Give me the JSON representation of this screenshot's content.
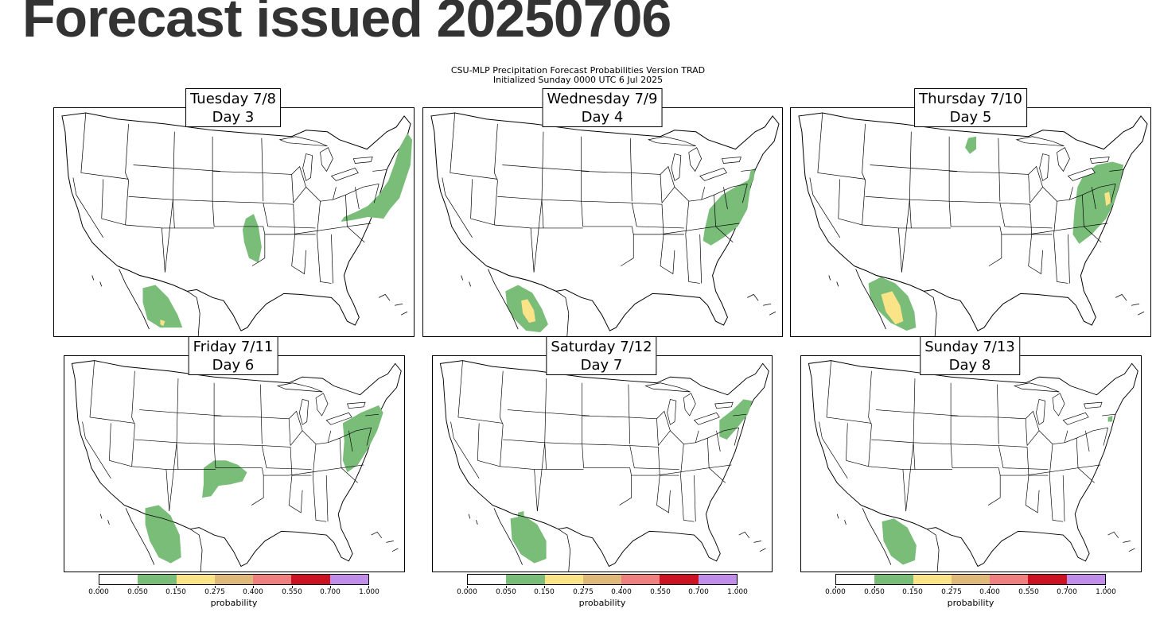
{
  "page_title": "Forecast issued 20250706",
  "figure": {
    "title_line1": "CSU-MLP Precipitation Forecast Probabilities Version TRAD",
    "title_line2": "Initialized Sunday 0000 UTC 6 Jul 2025"
  },
  "colors": {
    "green": "#79bd79",
    "yellow": "#fbe387",
    "tan": "#dfb97a",
    "pink": "#f08080",
    "red": "#cc1122",
    "purple": "#c08de8",
    "border": "#000000"
  },
  "colorbar": {
    "label": "probability",
    "ticks": [
      "0.000",
      "0.050",
      "0.150",
      "0.275",
      "0.400",
      "0.550",
      "0.700",
      "1.000"
    ],
    "colors": [
      "#ffffff",
      "#79bd79",
      "#fbe387",
      "#dfb97a",
      "#f08080",
      "#cc1122",
      "#c08de8"
    ]
  },
  "panels": [
    {
      "day_name": "Tuesday 7/8",
      "day_num": "Day 3",
      "areas": [
        {
          "region": "Northeast US coast",
          "max_category": "0.050-0.150"
        },
        {
          "region": "Oklahoma / Texas panhandle",
          "max_category": "0.050-0.150"
        },
        {
          "region": "Northwest Mexico",
          "max_category": "0.150-0.275"
        }
      ]
    },
    {
      "day_name": "Wednesday 7/9",
      "day_num": "Day 4",
      "areas": [
        {
          "region": "Mid-Atlantic / Virginia",
          "max_category": "0.050-0.150"
        },
        {
          "region": "Northwest Mexico",
          "max_category": "0.150-0.275"
        }
      ]
    },
    {
      "day_name": "Thursday 7/10",
      "day_num": "Day 5",
      "areas": [
        {
          "region": "North Dakota",
          "max_category": "0.050-0.150"
        },
        {
          "region": "Mid-Atlantic / Northeast",
          "max_category": "0.150-0.275"
        },
        {
          "region": "New Mexico / Northwest Mexico",
          "max_category": "0.150-0.275"
        }
      ]
    },
    {
      "day_name": "Friday 7/11",
      "day_num": "Day 6",
      "areas": [
        {
          "region": "Texas / Oklahoma panhandles",
          "max_category": "0.050-0.150"
        },
        {
          "region": "Mid-Atlantic coast",
          "max_category": "0.050-0.150"
        },
        {
          "region": "Northwest Mexico",
          "max_category": "0.050-0.150"
        }
      ]
    },
    {
      "day_name": "Saturday 7/12",
      "day_num": "Day 7",
      "areas": [
        {
          "region": "New Jersey / New York",
          "max_category": "0.050-0.150"
        },
        {
          "region": "Northwest Mexico",
          "max_category": "0.050-0.150"
        }
      ]
    },
    {
      "day_name": "Sunday 7/13",
      "day_num": "Day 8",
      "areas": [
        {
          "region": "Northwest Mexico",
          "max_category": "0.050-0.150"
        }
      ]
    }
  ]
}
